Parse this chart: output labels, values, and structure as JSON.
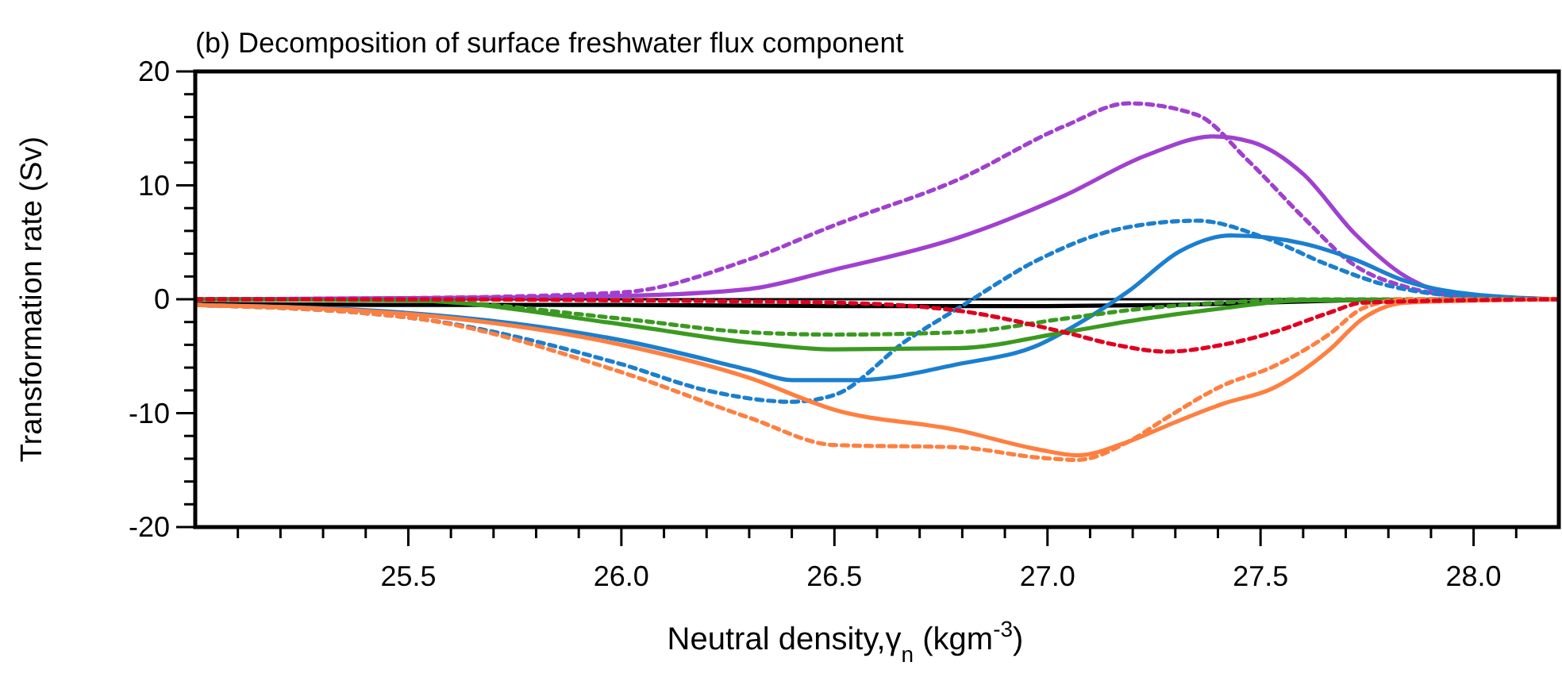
{
  "chart_data": {
    "type": "line",
    "title": "(b) Decomposition of surface freshwater flux component",
    "xlabel": "Neutral density,γ$_{n}$ (kgm$^{-3}$)",
    "ylabel": "Transformation rate (Sv)",
    "xlim": [
      25.0,
      28.2
    ],
    "ylim": [
      -20,
      20
    ],
    "xticks": [
      {
        "value": 25.1,
        "label": null
      },
      {
        "value": 25.2,
        "label": null
      },
      {
        "value": 25.3,
        "label": null
      },
      {
        "value": 25.4,
        "label": null
      },
      {
        "value": 25.5,
        "label": "25.5"
      },
      {
        "value": 25.6,
        "label": null
      },
      {
        "value": 25.7,
        "label": null
      },
      {
        "value": 25.8,
        "label": null
      },
      {
        "value": 25.9,
        "label": null
      },
      {
        "value": 26,
        "label": "26.0"
      },
      {
        "value": 26.1,
        "label": null
      },
      {
        "value": 26.2,
        "label": null
      },
      {
        "value": 26.3,
        "label": null
      },
      {
        "value": 26.4,
        "label": null
      },
      {
        "value": 26.5,
        "label": "26.5"
      },
      {
        "value": 26.6,
        "label": null
      },
      {
        "value": 26.7,
        "label": null
      },
      {
        "value": 26.8,
        "label": null
      },
      {
        "value": 26.9,
        "label": null
      },
      {
        "value": 27,
        "label": "27.0"
      },
      {
        "value": 27.1,
        "label": null
      },
      {
        "value": 27.2,
        "label": null
      },
      {
        "value": 27.3,
        "label": null
      },
      {
        "value": 27.4,
        "label": null
      },
      {
        "value": 27.5,
        "label": "27.5"
      },
      {
        "value": 27.6,
        "label": null
      },
      {
        "value": 27.7,
        "label": null
      },
      {
        "value": 27.8,
        "label": null
      },
      {
        "value": 27.9,
        "label": null
      },
      {
        "value": 28,
        "label": "28.0"
      },
      {
        "value": 28.1,
        "label": null
      }
    ],
    "yticks": [
      {
        "value": -18,
        "label": null
      },
      {
        "value": -16,
        "label": null
      },
      {
        "value": -14,
        "label": null
      },
      {
        "value": -12,
        "label": null
      },
      -10,
      {
        "value": -8,
        "label": null
      },
      {
        "value": -6,
        "label": null
      },
      {
        "value": -4,
        "label": null
      },
      {
        "value": -2,
        "label": null
      },
      0,
      {
        "value": 2,
        "label": null
      },
      {
        "value": 4,
        "label": null
      },
      {
        "value": 6,
        "label": null
      },
      {
        "value": 8,
        "label": null
      },
      10,
      {
        "value": 12,
        "label": null
      },
      {
        "value": 14,
        "label": null
      },
      {
        "value": 16,
        "label": null
      },
      {
        "value": 18,
        "label": null
      },
      -20,
      20
    ],
    "grid": false,
    "marker": "none",
    "ref_lines": [
      {
        "axis": "y",
        "value": 0,
        "color": "#000000"
      }
    ],
    "series": [
      {
        "color": "#000000",
        "line_style": "solid",
        "x": [
          25.0,
          25.5,
          26.0,
          26.5,
          27.0,
          27.3,
          27.5,
          27.7,
          28.0,
          28.2
        ],
        "values": [
          -0.4,
          -0.5,
          -0.5,
          -0.6,
          -0.6,
          -0.5,
          -0.3,
          -0.1,
          0,
          0
        ]
      },
      {
        "color": "#a040d0",
        "line_style": "dotted",
        "x": [
          25.0,
          25.5,
          26.0,
          26.3,
          26.5,
          26.79,
          27.04,
          27.19,
          27.35,
          27.47,
          27.6,
          27.72,
          27.84,
          27.96,
          28.2
        ],
        "values": [
          0,
          0.1,
          0.6,
          3.5,
          6.5,
          10.5,
          15.2,
          17.2,
          16.2,
          12.2,
          7.2,
          3,
          1.1,
          0.3,
          0
        ]
      },
      {
        "color": "#a040d0",
        "line_style": "solid",
        "x": [
          25.0,
          25.5,
          26.0,
          26.3,
          26.5,
          26.79,
          27.04,
          27.23,
          27.39,
          27.48,
          27.6,
          27.72,
          27.84,
          27.96,
          28.2
        ],
        "values": [
          0,
          0.1,
          0.3,
          0.9,
          2.6,
          5.4,
          9.1,
          12.6,
          14.3,
          13.8,
          11,
          5.8,
          2,
          0.4,
          0
        ]
      },
      {
        "color": "#1a7fd0",
        "line_style": "solid",
        "x": [
          25.0,
          25.5,
          26.0,
          26.3,
          26.4,
          26.55,
          26.79,
          26.98,
          27.07,
          27.19,
          27.31,
          27.43,
          27.6,
          27.72,
          27.84,
          27.96,
          28.2
        ],
        "values": [
          -0.5,
          -1.2,
          -3.6,
          -6.2,
          -7.1,
          -7.1,
          -5.7,
          -4,
          -2.2,
          0.7,
          4.2,
          5.6,
          4.9,
          3.5,
          1.6,
          0.6,
          0
        ]
      },
      {
        "color": "#1a7fd0",
        "line_style": "dotted",
        "x": [
          25.0,
          25.5,
          26.0,
          26.2,
          26.4,
          26.5,
          26.67,
          26.79,
          26.98,
          27.16,
          27.35,
          27.51,
          27.66,
          27.78,
          27.96,
          28.2
        ],
        "values": [
          -0.5,
          -1.6,
          -5.7,
          -8,
          -9,
          -8.4,
          -3.6,
          -0.8,
          3.5,
          6.1,
          6.9,
          5.4,
          3,
          1.4,
          0.3,
          0
        ]
      },
      {
        "color": "#3a9a20",
        "line_style": "solid",
        "x": [
          25.0,
          25.5,
          26.0,
          26.3,
          26.5,
          26.79,
          27.04,
          27.23,
          27.41,
          27.6,
          28.2
        ],
        "values": [
          0,
          -0.1,
          -2.2,
          -3.8,
          -4.4,
          -4.3,
          -2.9,
          -1.7,
          -0.8,
          -0.1,
          0
        ]
      },
      {
        "color": "#3a9a20",
        "line_style": "dotted",
        "x": [
          25.0,
          25.5,
          26.0,
          26.3,
          26.5,
          26.79,
          27.04,
          27.23,
          27.41,
          27.6,
          28.2
        ],
        "values": [
          0,
          -0.1,
          -1.7,
          -2.9,
          -3.1,
          -2.9,
          -1.7,
          -0.8,
          -0.3,
          0,
          0
        ]
      },
      {
        "color": "#ff7f40",
        "line_style": "solid",
        "x": [
          25.0,
          25.5,
          26.0,
          26.3,
          26.5,
          26.79,
          26.98,
          27.07,
          27.19,
          27.28,
          27.41,
          27.53,
          27.66,
          27.74,
          27.84,
          28.2
        ],
        "values": [
          -0.5,
          -1.3,
          -4,
          -6.9,
          -9.7,
          -11.5,
          -13.2,
          -13.7,
          -12.5,
          -11.1,
          -9.2,
          -7.8,
          -4.5,
          -1.7,
          -0.3,
          0
        ]
      },
      {
        "color": "#ff7f40",
        "line_style": "dotted",
        "x": [
          25.0,
          25.5,
          26.0,
          26.3,
          26.5,
          26.79,
          26.98,
          27.07,
          27.19,
          27.28,
          27.41,
          27.53,
          27.66,
          27.74,
          27.84,
          28.2
        ],
        "values": [
          -0.5,
          -1.6,
          -6.4,
          -10.4,
          -12.8,
          -13,
          -13.9,
          -14.1,
          -12.5,
          -10.4,
          -7.6,
          -5.9,
          -3.1,
          -0.8,
          0,
          0
        ]
      },
      {
        "color": "#e00020",
        "line_style": "dotted",
        "x": [
          25.0,
          25.5,
          26.0,
          26.5,
          26.79,
          27.04,
          27.16,
          27.28,
          27.41,
          27.53,
          27.66,
          27.74,
          28.2
        ],
        "values": [
          0,
          0,
          -0.1,
          -0.3,
          -1,
          -2.9,
          -4,
          -4.6,
          -4,
          -2.9,
          -1.2,
          -0.3,
          0
        ]
      }
    ]
  }
}
